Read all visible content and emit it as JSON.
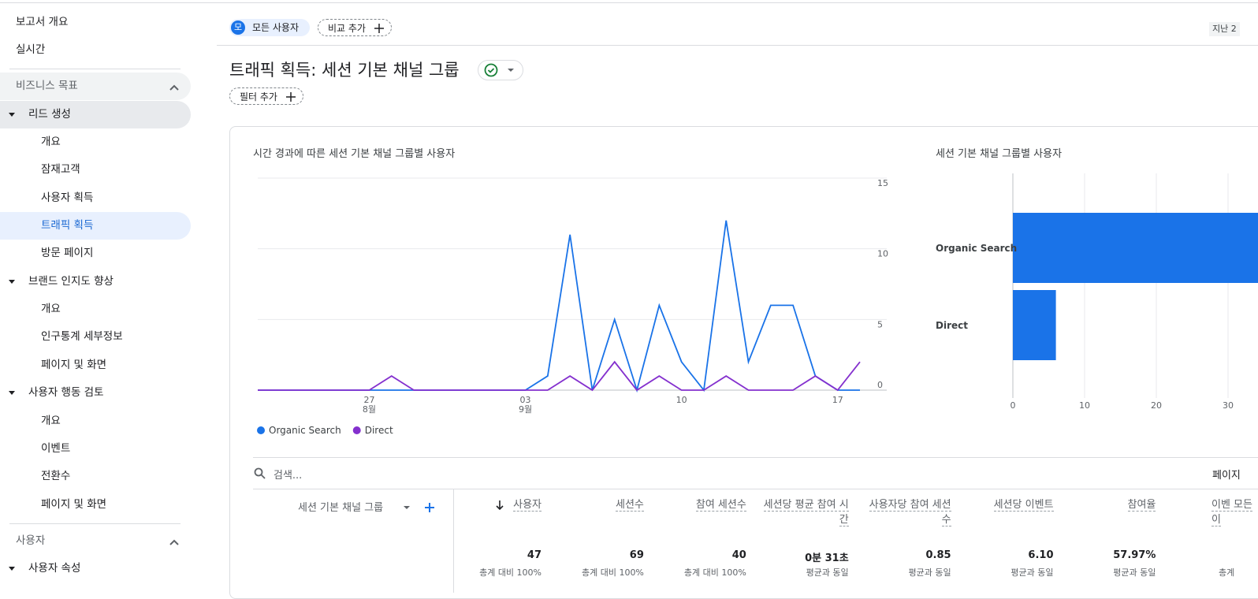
{
  "sidebar": {
    "items": [
      "보고서 개요",
      "실시간",
      "비즈니스 목표",
      "리드 생성",
      "개요",
      "잠재고객",
      "사용자 획득",
      "트래픽 획득",
      "방문 페이지",
      "브랜드 인지도 향상",
      "개요",
      "인구통계 세부정보",
      "페이지 및 화면",
      "사용자 행동 검토",
      "개요",
      "이벤트",
      "전환수",
      "페이지 및 화면",
      "사용자",
      "사용자 속성"
    ]
  },
  "header": {
    "avatar": "모",
    "segment": "모든 사용자",
    "compare": "비교 추가",
    "date_range": "지난 2",
    "title": "트래픽 획득: 세션 기본 채널 그룹",
    "filter": "필터 추가"
  },
  "chart_data": [
    {
      "type": "line",
      "title": "시간 경과에 따른 세션 기본 채널 그룹별 사용자",
      "categories": [
        null,
        null,
        null,
        null,
        null,
        "27",
        null,
        null,
        null,
        null,
        null,
        null,
        "03",
        null,
        null,
        null,
        null,
        null,
        null,
        "10",
        null,
        null,
        null,
        null,
        null,
        null,
        "17",
        null
      ],
      "month_labels": [
        null,
        null,
        null,
        null,
        null,
        "8월",
        null,
        null,
        null,
        null,
        null,
        null,
        "9월",
        null,
        null,
        null,
        null,
        null,
        null,
        null,
        null,
        null,
        null,
        null,
        null,
        null,
        null,
        null
      ],
      "series": [
        {
          "name": "Organic Search",
          "color": "#1a73e8",
          "values": [
            0,
            0,
            0,
            0,
            0,
            0,
            0,
            0,
            0,
            0,
            0,
            0,
            0,
            1,
            11,
            0,
            5,
            0,
            6,
            2,
            0,
            12,
            2,
            6,
            6,
            1,
            0,
            0
          ]
        },
        {
          "name": "Direct",
          "color": "#8430ce",
          "values": [
            0,
            0,
            0,
            0,
            0,
            0,
            1,
            0,
            0,
            0,
            0,
            0,
            0,
            0,
            1,
            0,
            2,
            0,
            1,
            0,
            0,
            1,
            0,
            0,
            0,
            1,
            0,
            2
          ]
        }
      ],
      "ylim": [
        0,
        15
      ],
      "yticks": [
        0,
        5,
        10,
        15
      ],
      "grid": true,
      "legend": "bottom-left"
    },
    {
      "type": "hbar",
      "title": "세션 기본 채널 그룹별 사용자",
      "categories": [
        "Organic Search",
        "Direct"
      ],
      "values": [
        41,
        6
      ],
      "color": "#1a73e8",
      "xlim": [
        0,
        50
      ],
      "xticks": [
        0,
        10,
        20,
        30
      ],
      "grid": true
    }
  ],
  "table": {
    "search": "검색...",
    "pagination": "페이지",
    "dimension": "세션 기본 채널 그룹",
    "columns": [
      "사용자",
      "세션수",
      "참여 세션수",
      "세션당 평균 참여 시간",
      "사용자당 참여 세션수",
      "세션당 이벤트",
      "참여율",
      "이벤 모든 이"
    ],
    "totals": [
      "47",
      "69",
      "40",
      "0분 31초",
      "0.85",
      "6.10",
      "57.97%",
      ""
    ],
    "totals_notes": [
      "총계 대비 100%",
      "총계 대비 100%",
      "총계 대비 100%",
      "평균과 동일",
      "평균과 동일",
      "평균과 동일",
      "평균과 동일",
      "총계"
    ]
  }
}
